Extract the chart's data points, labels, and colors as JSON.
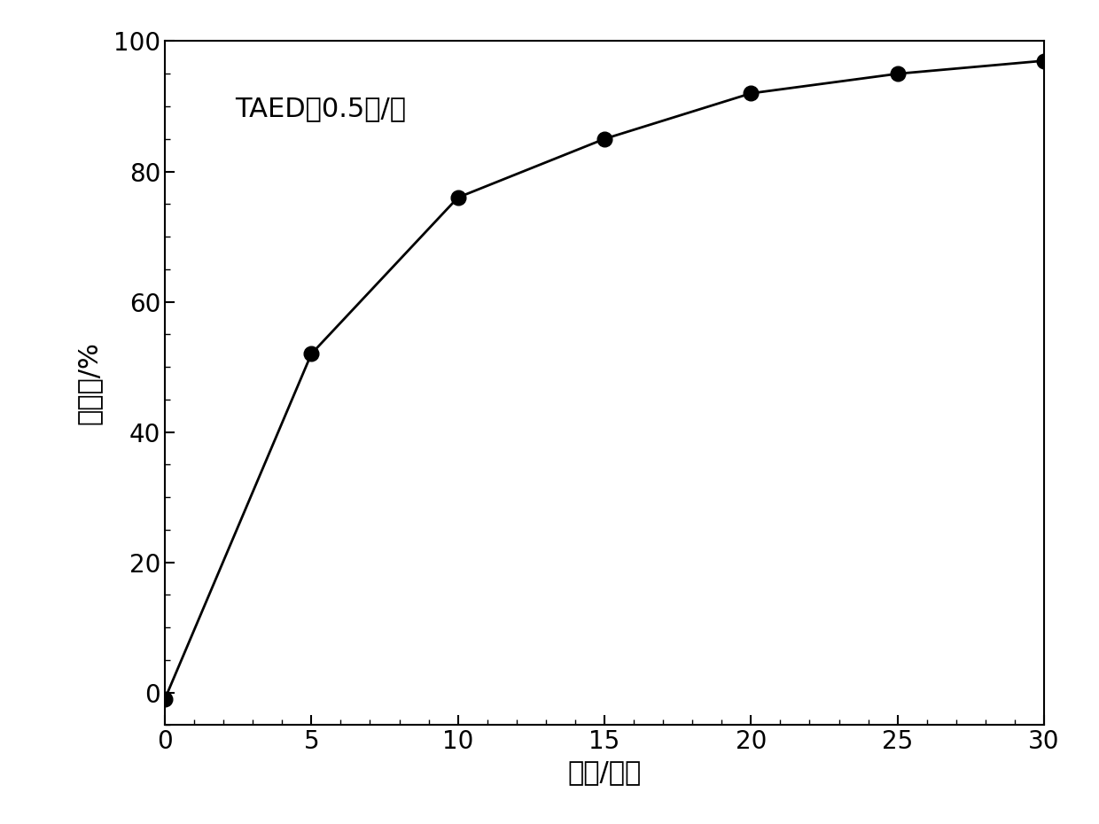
{
  "x": [
    0,
    5,
    10,
    15,
    20,
    25,
    30
  ],
  "y": [
    -1,
    52,
    76,
    85,
    92,
    95,
    97
  ],
  "xlabel": "时间/分钟",
  "ylabel": "脉色率/%",
  "annotation": "TAED：0.5克/升",
  "xlim": [
    0,
    30
  ],
  "ylim": [
    -5,
    100
  ],
  "xticks": [
    0,
    5,
    10,
    15,
    20,
    25,
    30
  ],
  "yticks": [
    0,
    20,
    40,
    60,
    80,
    100
  ],
  "line_color": "#000000",
  "marker_color": "#000000",
  "marker_size": 12,
  "line_width": 2.0,
  "background_color": "#ffffff",
  "xlabel_fontsize": 22,
  "ylabel_fontsize": 22,
  "tick_fontsize": 20,
  "annotation_fontsize": 22
}
